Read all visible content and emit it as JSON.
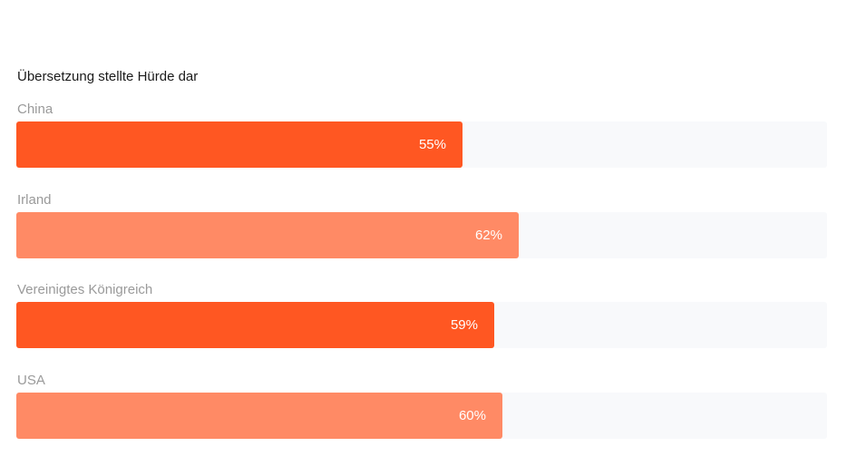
{
  "chart_data": {
    "type": "bar",
    "orientation": "horizontal",
    "title": "Übersetzung stellte Hürde dar",
    "xlim": [
      0,
      100
    ],
    "bars": [
      {
        "category": "China",
        "value": 55,
        "value_label": "55%",
        "color": "#ff5722"
      },
      {
        "category": "Irland",
        "value": 62,
        "value_label": "62%",
        "color": "#ff8a65"
      },
      {
        "category": "Vereinigtes Königreich",
        "value": 59,
        "value_label": "59%",
        "color": "#ff5722"
      },
      {
        "category": "USA",
        "value": 60,
        "value_label": "60%",
        "color": "#ff8a65"
      }
    ],
    "track_color": "#f8f9fb",
    "grid": false
  }
}
